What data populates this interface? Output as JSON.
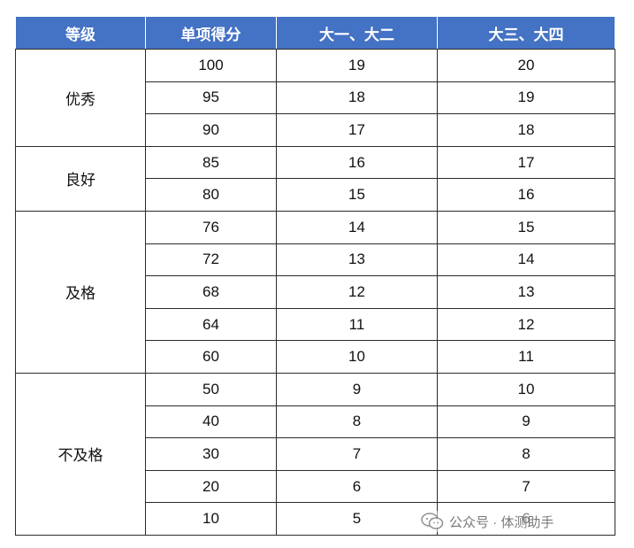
{
  "headers": [
    "等级",
    "单项得分",
    "大一、大二",
    "大三、大四"
  ],
  "groups": [
    {
      "grade": "优秀",
      "rows": [
        {
          "score": "100",
          "year12": "19",
          "year34": "20"
        },
        {
          "score": "95",
          "year12": "18",
          "year34": "19"
        },
        {
          "score": "90",
          "year12": "17",
          "year34": "18"
        }
      ]
    },
    {
      "grade": "良好",
      "rows": [
        {
          "score": "85",
          "year12": "16",
          "year34": "17"
        },
        {
          "score": "80",
          "year12": "15",
          "year34": "16"
        }
      ]
    },
    {
      "grade": "及格",
      "rows": [
        {
          "score": "76",
          "year12": "14",
          "year34": "15"
        },
        {
          "score": "72",
          "year12": "13",
          "year34": "14"
        },
        {
          "score": "68",
          "year12": "12",
          "year34": "13"
        },
        {
          "score": "64",
          "year12": "11",
          "year34": "12"
        },
        {
          "score": "60",
          "year12": "10",
          "year34": "11"
        }
      ]
    },
    {
      "grade": "不及格",
      "rows": [
        {
          "score": "50",
          "year12": "9",
          "year34": "10"
        },
        {
          "score": "40",
          "year12": "8",
          "year34": "9"
        },
        {
          "score": "30",
          "year12": "7",
          "year34": "8"
        },
        {
          "score": "20",
          "year12": "6",
          "year34": "7"
        },
        {
          "score": "10",
          "year12": "5",
          "year34": "6"
        }
      ]
    }
  ],
  "watermark": {
    "text": "公众号 · 体测助手",
    "icon": "wechat-icon",
    "color": "#6b6b6b"
  },
  "colors": {
    "header_bg": "#4472c4",
    "header_text": "#ffffff",
    "border": "#2b2b2b"
  }
}
